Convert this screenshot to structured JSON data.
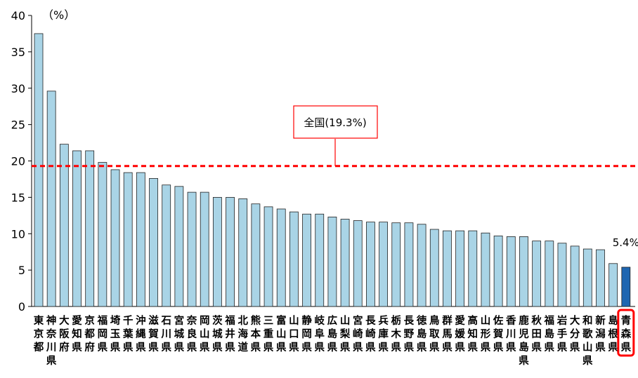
{
  "chart_data": {
    "type": "bar",
    "title": "",
    "xlabel": "",
    "ylabel": "（%）",
    "ylim": [
      0,
      40
    ],
    "yticks": [
      0,
      5,
      10,
      15,
      20,
      25,
      30,
      35,
      40
    ],
    "grid": false,
    "categories": [
      "東京都",
      "神奈川県",
      "大阪府",
      "愛知県",
      "京都府",
      "福岡県",
      "埼玉県",
      "千葉県",
      "沖縄県",
      "滋賀県",
      "石川県",
      "宮城県",
      "奈良県",
      "岡山県",
      "茨城県",
      "福井県",
      "北海道",
      "熊本県",
      "三重県",
      "富山県",
      "山口県",
      "静岡県",
      "岐阜県",
      "広島県",
      "山梨県",
      "宮崎県",
      "長崎県",
      "兵庫県",
      "栃木県",
      "長野県",
      "徳島県",
      "鳥取県",
      "群馬県",
      "愛媛県",
      "高知県",
      "山形県",
      "佐賀県",
      "香川県",
      "鹿児島県",
      "秋田県",
      "福島県",
      "岩手県",
      "大分県",
      "和歌山県",
      "新潟県",
      "島根県",
      "青森県"
    ],
    "values": [
      37.5,
      29.6,
      22.3,
      21.4,
      21.4,
      19.8,
      18.8,
      18.4,
      18.4,
      17.6,
      16.7,
      16.5,
      15.7,
      15.7,
      15.0,
      15.0,
      14.8,
      14.1,
      13.7,
      13.4,
      13.0,
      12.7,
      12.7,
      12.3,
      12.0,
      11.8,
      11.6,
      11.6,
      11.5,
      11.5,
      11.3,
      10.6,
      10.4,
      10.4,
      10.4,
      10.1,
      9.7,
      9.6,
      9.6,
      9.0,
      9.0,
      8.7,
      8.3,
      7.9,
      7.8,
      5.9,
      5.4
    ],
    "highlight": {
      "category": "青森県",
      "label": "5.4%",
      "color": "#1F66B1"
    },
    "reference_line": {
      "value": 19.3,
      "label": "全国(19.3%)",
      "color": "#FF0000"
    },
    "bar_color": "#A9D4E6",
    "bar_edge_color": "#222222"
  }
}
